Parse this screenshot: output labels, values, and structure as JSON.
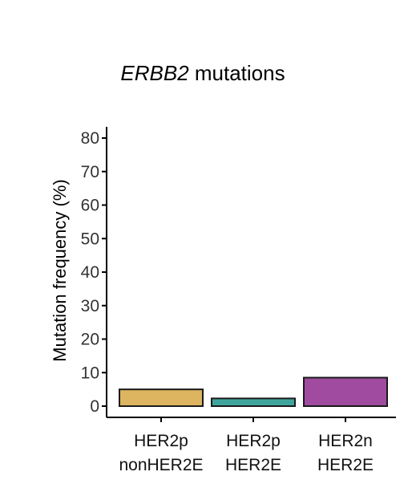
{
  "chart_data": {
    "type": "bar",
    "title": {
      "gene": "ERBB2",
      "rest": " mutations"
    },
    "ylabel": "Mutation frequency (%)",
    "xlabel": "",
    "ylim": [
      0,
      80
    ],
    "yticks": [
      0,
      10,
      20,
      30,
      40,
      50,
      60,
      70,
      80
    ],
    "grid": false,
    "legend": "none",
    "categories": [
      {
        "line1": "HER2p",
        "line2": "nonHER2E"
      },
      {
        "line1": "HER2p",
        "line2": "HER2E"
      },
      {
        "line1": "HER2n",
        "line2": "HER2E"
      }
    ],
    "values": [
      5.0,
      2.3,
      8.5
    ],
    "colors": [
      "#DDB45F",
      "#3FA59C",
      "#A04BA0"
    ],
    "bar_outline": "#1a1a1a"
  }
}
